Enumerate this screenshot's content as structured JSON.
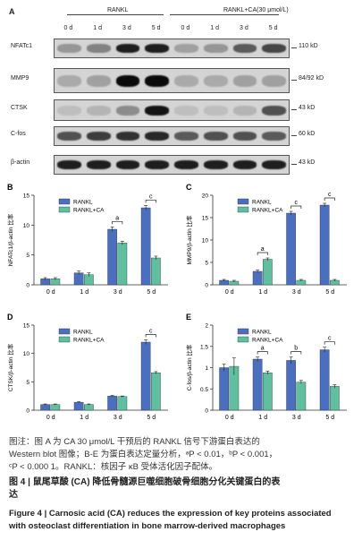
{
  "western_blot": {
    "panel_letter": "A",
    "group_left": "RANKL",
    "group_right": "RANKL+CA(30 μmol/L)",
    "lanes": [
      "0 d",
      "1 d",
      "3 d",
      "5 d",
      "0 d",
      "1 d",
      "3 d",
      "5 d"
    ],
    "rows": [
      {
        "name": "NFATc1",
        "size": "110 kD",
        "intensities": [
          0.25,
          0.35,
          0.85,
          0.85,
          0.2,
          0.25,
          0.55,
          0.65
        ]
      },
      {
        "name": "MMP9",
        "size": "84/92 kD",
        "intensities": [
          0.15,
          0.2,
          0.95,
          0.95,
          0.15,
          0.15,
          0.2,
          0.2
        ]
      },
      {
        "name": "CTSK",
        "size": "43 kD",
        "intensities": [
          0.05,
          0.1,
          0.3,
          0.9,
          0.05,
          0.05,
          0.1,
          0.6
        ]
      },
      {
        "name": "C-fos",
        "size": "60 kD",
        "intensities": [
          0.6,
          0.7,
          0.75,
          0.8,
          0.55,
          0.6,
          0.6,
          0.55
        ]
      },
      {
        "name": "β-actin",
        "size": "43 kD",
        "intensities": [
          0.85,
          0.85,
          0.85,
          0.85,
          0.85,
          0.85,
          0.85,
          0.85
        ]
      }
    ]
  },
  "colors": {
    "rankl": "#4a6fc1",
    "rankl_ca": "#5fc0a0"
  },
  "chart_data": [
    {
      "type": "bar",
      "panel": "B",
      "ylabel": "NFATc1/β-actin 比率",
      "categories": [
        "0 d",
        "1 d",
        "3 d",
        "5 d"
      ],
      "ylim": [
        0,
        15
      ],
      "yticks": [
        0,
        5,
        10,
        15
      ],
      "series": [
        {
          "name": "RANKL",
          "values": [
            1.0,
            2.0,
            9.3,
            12.9
          ],
          "errors": [
            0.2,
            0.3,
            0.4,
            0.4
          ]
        },
        {
          "name": "RANKL+CA",
          "values": [
            1.0,
            1.7,
            7.0,
            4.5
          ],
          "errors": [
            0.2,
            0.3,
            0.3,
            0.3
          ]
        }
      ],
      "annotations": [
        {
          "between": "3 d",
          "label": "a"
        },
        {
          "between": "5 d",
          "label": "c"
        }
      ]
    },
    {
      "type": "bar",
      "panel": "C",
      "ylabel": "MMP9/β-actin 比率",
      "categories": [
        "0 d",
        "1 d",
        "3 d",
        "5 d"
      ],
      "ylim": [
        0,
        20
      ],
      "yticks": [
        0,
        5,
        10,
        15,
        20
      ],
      "series": [
        {
          "name": "RANKL",
          "values": [
            1.0,
            3.0,
            16.0,
            17.8
          ],
          "errors": [
            0.2,
            0.3,
            0.4,
            0.4
          ]
        },
        {
          "name": "RANKL+CA",
          "values": [
            0.8,
            5.7,
            1.0,
            1.0
          ],
          "errors": [
            0.2,
            0.3,
            0.2,
            0.2
          ]
        }
      ],
      "annotations": [
        {
          "between": "1 d",
          "label": "a"
        },
        {
          "between": "3 d",
          "label": "c"
        },
        {
          "between": "5 d",
          "label": "c"
        }
      ]
    },
    {
      "type": "bar",
      "panel": "D",
      "ylabel": "CTSK/β-actin 比率",
      "categories": [
        "0 d",
        "1 d",
        "3 d",
        "5 d"
      ],
      "ylim": [
        0,
        15
      ],
      "yticks": [
        0,
        5,
        10,
        15
      ],
      "series": [
        {
          "name": "RANKL",
          "values": [
            1.0,
            1.4,
            2.5,
            12.0
          ],
          "errors": [
            0.1,
            0.1,
            0.1,
            0.4
          ]
        },
        {
          "name": "RANKL+CA",
          "values": [
            1.0,
            1.0,
            2.4,
            6.6
          ],
          "errors": [
            0.1,
            0.1,
            0.1,
            0.2
          ]
        }
      ],
      "annotations": [
        {
          "between": "5 d",
          "label": "c"
        }
      ]
    },
    {
      "type": "bar",
      "panel": "E",
      "ylabel": "C-fos/β-actin 比率",
      "categories": [
        "0 d",
        "1 d",
        "3 d",
        "5 d"
      ],
      "ylim": [
        0,
        2.0
      ],
      "yticks": [
        0,
        0.5,
        1.0,
        1.5,
        2.0
      ],
      "series": [
        {
          "name": "RANKL",
          "values": [
            1.0,
            1.2,
            1.17,
            1.42
          ],
          "errors": [
            0.08,
            0.05,
            0.08,
            0.06
          ]
        },
        {
          "name": "RANKL+CA",
          "values": [
            1.03,
            0.88,
            0.66,
            0.56
          ],
          "errors": [
            0.2,
            0.04,
            0.04,
            0.04
          ]
        }
      ],
      "annotations": [
        {
          "between": "1 d",
          "label": "a"
        },
        {
          "between": "3 d",
          "label": "b"
        },
        {
          "between": "5 d",
          "label": "c"
        }
      ]
    }
  ],
  "caption": {
    "line1": "图注：图 A 为 CA 30 μmol/L 干预后的 RANKL 信号下游蛋白表达的",
    "line2": "Western blot 图像；B-E 为蛋白表达定量分析，ᵃP < 0.01，ᵇP < 0.001，",
    "line3": "ᶜP < 0.000 1。RANKL：核因子 κB 受体活化因子配体。",
    "title_cn_1": "图 4 | 鼠尾草酸 (CA) 降低骨髓源巨噬细胞破骨细胞分化关键蛋白的表",
    "title_cn_2": "达",
    "title_en_1": "Figure 4 | Carnosic acid (CA) reduces the expression of key proteins associated",
    "title_en_2": "with osteoclast differentiation in bone marrow-derived macrophages"
  }
}
